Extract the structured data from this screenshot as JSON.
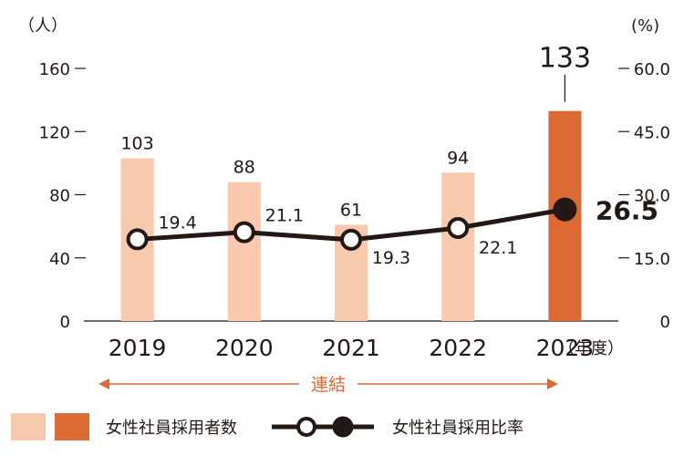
{
  "chart_data": {
    "type": "bar",
    "left_unit": "（人）",
    "right_unit": "(%)",
    "categories": [
      "2019",
      "2020",
      "2021",
      "2022",
      "2023"
    ],
    "year_suffix": "（年度）",
    "left_axis": {
      "ylim": [
        0,
        160
      ],
      "ticks": [
        "0",
        "40",
        "80",
        "120",
        "160"
      ],
      "tick_values": [
        0,
        40,
        80,
        120,
        160
      ]
    },
    "right_axis": {
      "ylim": [
        0,
        60
      ],
      "ticks": [
        "0",
        "15.0",
        "30.0",
        "45.0",
        "60.0"
      ],
      "tick_values": [
        0,
        15,
        30,
        45,
        60
      ]
    },
    "series": [
      {
        "name": "女性社員採用者数",
        "kind": "bar",
        "axis": "left",
        "values": [
          103,
          88,
          61,
          94,
          133
        ],
        "labels": [
          "103",
          "88",
          "61",
          "94",
          "133"
        ],
        "colors": [
          "#f7c9ad",
          "#f7c9ad",
          "#f7c9ad",
          "#f7c9ad",
          "#dd6a35"
        ]
      },
      {
        "name": "女性社員採用比率",
        "kind": "line",
        "axis": "right",
        "values": [
          19.4,
          21.1,
          19.3,
          22.1,
          26.5
        ],
        "labels": [
          "19.4",
          "21.1",
          "19.3",
          "22.1",
          "26.5"
        ],
        "color": "#231815"
      }
    ],
    "scope_label": "連結",
    "scope_color": "#dd6a35",
    "legend": {
      "position": "bottom-left",
      "bar_label": "女性社員採用者数",
      "line_label": "女性社員採用比率"
    },
    "grid": false
  }
}
